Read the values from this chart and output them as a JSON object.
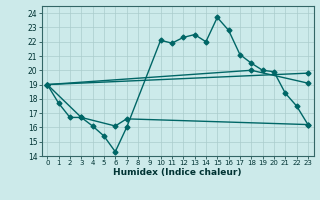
{
  "xlabel": "Humidex (Indice chaleur)",
  "xlim": [
    -0.5,
    23.5
  ],
  "ylim": [
    14,
    24.5
  ],
  "yticks": [
    14,
    15,
    16,
    17,
    18,
    19,
    20,
    21,
    22,
    23,
    24
  ],
  "xticks": [
    0,
    1,
    2,
    3,
    4,
    5,
    6,
    7,
    8,
    9,
    10,
    11,
    12,
    13,
    14,
    15,
    16,
    17,
    18,
    19,
    20,
    21,
    22,
    23
  ],
  "bg_color": "#cceaea",
  "grid_color": "#aacccc",
  "line_color": "#006666",
  "line1_x": [
    0,
    1,
    2,
    3,
    4,
    5,
    6,
    7,
    10,
    11,
    12,
    13,
    14,
    15,
    16,
    17,
    18,
    19,
    20,
    21,
    22,
    23
  ],
  "line1_y": [
    19,
    17.7,
    16.7,
    16.7,
    16.1,
    15.4,
    14.3,
    16.0,
    22.1,
    21.9,
    22.3,
    22.5,
    22.0,
    23.7,
    22.8,
    21.1,
    20.5,
    20.0,
    19.9,
    18.4,
    17.5,
    16.2
  ],
  "line2_x": [
    0,
    3,
    6,
    7,
    23
  ],
  "line2_y": [
    19,
    16.7,
    16.1,
    16.6,
    16.2
  ],
  "line3_x": [
    0,
    18,
    23
  ],
  "line3_y": [
    19,
    20.0,
    19.1
  ],
  "line4_x": [
    0,
    23
  ],
  "line4_y": [
    19,
    19.8
  ],
  "marker": "D",
  "marker_size": 2.5,
  "linewidth": 1.0
}
